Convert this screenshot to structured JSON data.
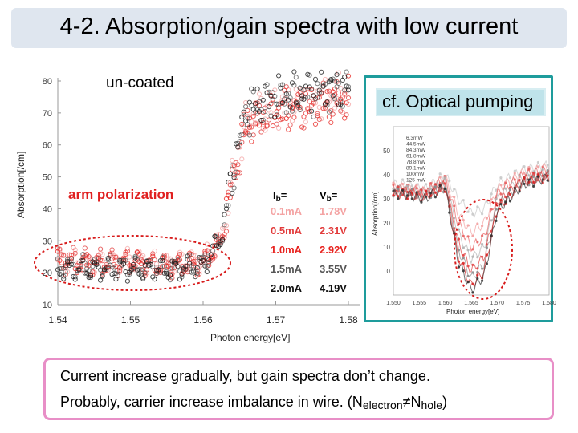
{
  "title": "4-2. Absorption/gain spectra with low current",
  "main_chart": {
    "label": "un-coated",
    "legend_title": "arm polarization",
    "col_i": "I",
    "col_i_sub": "b",
    "col_v": "V",
    "col_v_sub": "b",
    "eq": "=",
    "rows": [
      {
        "i": "0.1mA",
        "v": "1.78V",
        "color": "#f4a3a3"
      },
      {
        "i": "0.5mA",
        "v": "2.31V",
        "color": "#e23b3b"
      },
      {
        "i": "1.0mA",
        "v": "2.92V",
        "color": "#e8231f"
      },
      {
        "i": "1.5mA",
        "v": "3.55V",
        "color": "#555555"
      },
      {
        "i": "2.0mA",
        "v": "4.19V",
        "color": "#111111"
      }
    ]
  },
  "inset": {
    "label": "cf. Optical pumping",
    "legend": [
      "6.3mW",
      "44.5mW",
      "84.3mW",
      "61.8mW",
      "78.8mW",
      "89.1mW",
      "100mW",
      "125 mW"
    ]
  },
  "chart_data": [
    {
      "type": "scatter",
      "title": "",
      "xlabel": "Photon energy[eV]",
      "ylabel": "Absorption[/cm]",
      "xlim": [
        1.54,
        1.58
      ],
      "ylim": [
        10,
        80
      ],
      "xticks": [
        "1.54",
        "1.55",
        "1.56",
        "1.57",
        "1.58"
      ],
      "yticks": [
        "10",
        "20",
        "30",
        "40",
        "50",
        "60",
        "70",
        "80"
      ],
      "series": [
        {
          "name": "0.1mA",
          "x": [
            1.541,
            1.545,
            1.55,
            1.555,
            1.56,
            1.5625,
            1.564,
            1.566,
            1.57,
            1.575,
            1.58
          ],
          "y": [
            24,
            23,
            24,
            23,
            24,
            30,
            50,
            68,
            72,
            74,
            76
          ]
        },
        {
          "name": "0.5mA",
          "x": [
            1.541,
            1.545,
            1.55,
            1.555,
            1.56,
            1.5625,
            1.564,
            1.566,
            1.57,
            1.575,
            1.58
          ],
          "y": [
            25,
            24,
            24,
            22,
            23,
            29,
            48,
            66,
            71,
            73,
            75
          ]
        },
        {
          "name": "1.0mA",
          "x": [
            1.541,
            1.545,
            1.55,
            1.555,
            1.56,
            1.5625,
            1.564,
            1.566,
            1.57,
            1.575,
            1.58
          ],
          "y": [
            23,
            22,
            23,
            22,
            23,
            30,
            49,
            67,
            70,
            72,
            74
          ]
        },
        {
          "name": "1.5mA",
          "x": [
            1.541,
            1.545,
            1.55,
            1.555,
            1.56,
            1.5625,
            1.564,
            1.566,
            1.57,
            1.575,
            1.58
          ],
          "y": [
            22,
            22,
            22,
            21,
            23,
            31,
            50,
            70,
            74,
            76,
            77
          ]
        },
        {
          "name": "2.0mA",
          "x": [
            1.541,
            1.545,
            1.55,
            1.555,
            1.56,
            1.5625,
            1.564,
            1.566,
            1.57,
            1.575,
            1.58
          ],
          "y": [
            21,
            21,
            21,
            21,
            22,
            31,
            51,
            72,
            75,
            77,
            78
          ]
        }
      ]
    },
    {
      "type": "line",
      "title": "",
      "xlabel": "Photon energy[eV]",
      "ylabel": "Absorption[/cm]",
      "xlim": [
        1.55,
        1.58
      ],
      "ylim": [
        -10,
        60
      ],
      "xticks": [
        "1.550",
        "1.555",
        "1.560",
        "1.565",
        "1.570",
        "1.575",
        "1.580"
      ],
      "yticks": [
        "0",
        "10",
        "20",
        "30",
        "40",
        "50"
      ],
      "series": [
        {
          "name": "6.3mW",
          "x": [
            1.552,
            1.556,
            1.56,
            1.5625,
            1.565,
            1.5675,
            1.57,
            1.575,
            1.58
          ],
          "y": [
            36,
            34,
            40,
            30,
            24,
            26,
            36,
            42,
            44
          ]
        },
        {
          "name": "44.5mW",
          "x": [
            1.552,
            1.556,
            1.56,
            1.5625,
            1.565,
            1.5675,
            1.57,
            1.575,
            1.58
          ],
          "y": [
            35,
            33,
            39,
            24,
            16,
            20,
            34,
            41,
            43
          ]
        },
        {
          "name": "84.3mW",
          "x": [
            1.552,
            1.556,
            1.56,
            1.5625,
            1.565,
            1.5675,
            1.57,
            1.575,
            1.58
          ],
          "y": [
            34,
            33,
            38,
            20,
            10,
            14,
            32,
            40,
            42
          ]
        },
        {
          "name": "61.8mW",
          "x": [
            1.552,
            1.556,
            1.56,
            1.5625,
            1.565,
            1.5675,
            1.57,
            1.575,
            1.58
          ],
          "y": [
            34,
            32,
            37,
            16,
            5,
            10,
            30,
            39,
            41
          ]
        },
        {
          "name": "78.8mW",
          "x": [
            1.552,
            1.556,
            1.56,
            1.5625,
            1.565,
            1.5675,
            1.57,
            1.575,
            1.58
          ],
          "y": [
            33,
            32,
            36,
            12,
            0,
            6,
            28,
            38,
            40
          ]
        },
        {
          "name": "89.1mW",
          "x": [
            1.552,
            1.556,
            1.56,
            1.5625,
            1.565,
            1.5675,
            1.57,
            1.575,
            1.58
          ],
          "y": [
            33,
            31,
            36,
            9,
            -3,
            3,
            27,
            37,
            40
          ]
        },
        {
          "name": "100mW",
          "x": [
            1.552,
            1.556,
            1.56,
            1.5625,
            1.565,
            1.5675,
            1.57,
            1.575,
            1.58
          ],
          "y": [
            32,
            31,
            35,
            6,
            -6,
            0,
            26,
            37,
            39
          ]
        },
        {
          "name": "125 mW",
          "x": [
            1.552,
            1.556,
            1.56,
            1.5625,
            1.565,
            1.5675,
            1.57,
            1.575,
            1.58
          ],
          "y": [
            32,
            30,
            35,
            4,
            -8,
            -2,
            25,
            36,
            39
          ]
        }
      ]
    }
  ],
  "notes": {
    "line1": "Current increase gradually, but gain spectra don’t change.",
    "line2_prefix": "Probably, carrier increase imbalance in wire. (N",
    "line2_sub1": "electron",
    "line2_neq": "≠",
    "line2_mid": "N",
    "line2_sub2": "hole",
    "line2_suffix": ")"
  },
  "colors": {
    "title_bg": "#dfe6ef",
    "inset_border": "#1e9c9c",
    "inset_label_bg": "#bfe3ea",
    "note_border": "#e88fc7",
    "highlight_ellipse": "#d81c1c",
    "legend_title": "#e02020"
  }
}
